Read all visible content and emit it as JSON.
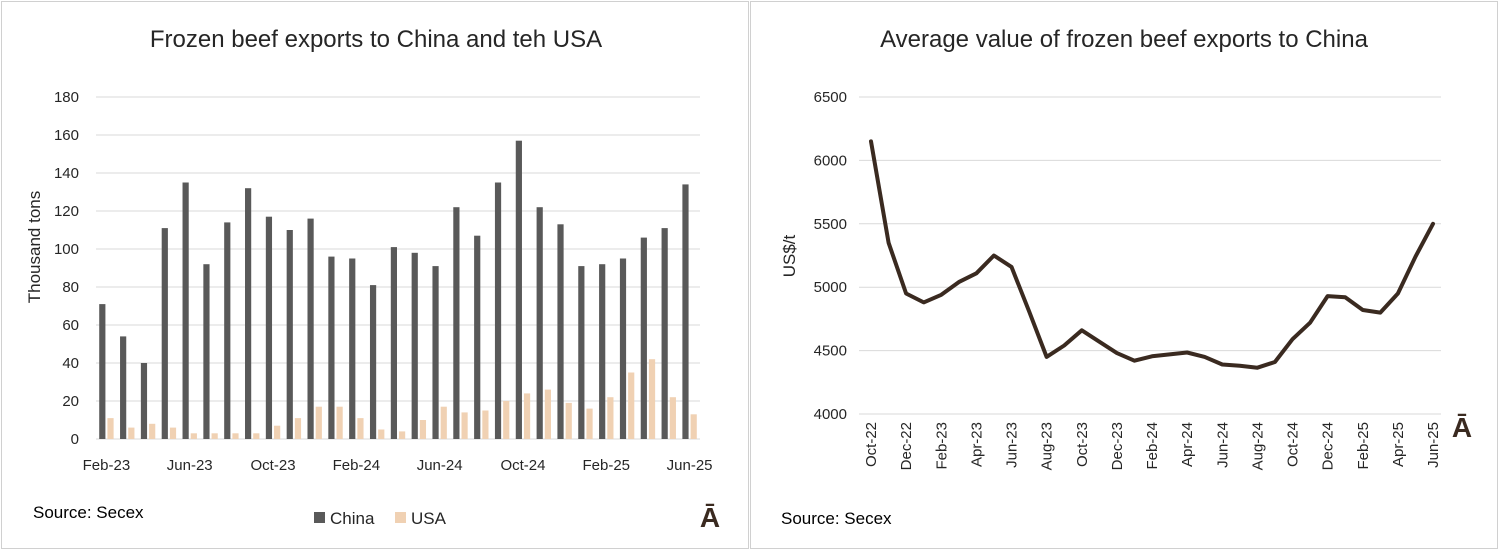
{
  "charts": {
    "chart_data": [
      {
        "type": "bar",
        "title": "Frozen beef exports to China and teh USA",
        "ylabel": "Thousand tons",
        "xlabel": "",
        "ylim": [
          0,
          180
        ],
        "yticks": [
          "0",
          "20",
          "40",
          "60",
          "80",
          "100",
          "120",
          "140",
          "160",
          "180"
        ],
        "categories": [
          "Feb-23",
          "Mar-23",
          "Apr-23",
          "May-23",
          "Jun-23",
          "Jul-23",
          "Aug-23",
          "Sep-23",
          "Oct-23",
          "Nov-23",
          "Dec-23",
          "Jan-24",
          "Feb-24",
          "Mar-24",
          "Apr-24",
          "May-24",
          "Jun-24",
          "Jul-24",
          "Aug-24",
          "Sep-24",
          "Oct-24",
          "Nov-24",
          "Dec-24",
          "Jan-25",
          "Feb-25",
          "Mar-25",
          "Apr-25",
          "May-25",
          "Jun-25"
        ],
        "xtick_labels": [
          "Feb-23",
          "Jun-23",
          "Oct-23",
          "Feb-24",
          "Jun-24",
          "Oct-24",
          "Feb-25",
          "Jun-25"
        ],
        "series": [
          {
            "name": "China",
            "color": "#595959",
            "values": [
              71,
              54,
              40,
              111,
              135,
              92,
              114,
              132,
              117,
              110,
              116,
              96,
              95,
              81,
              101,
              98,
              91,
              122,
              107,
              135,
              157,
              122,
              113,
              91,
              92,
              95,
              106,
              111,
              134
            ]
          },
          {
            "name": "USA",
            "color": "#f0d1b3",
            "values": [
              11,
              6,
              8,
              6,
              3,
              3,
              3,
              3,
              7,
              11,
              17,
              17,
              11,
              5,
              4,
              10,
              17,
              14,
              15,
              20,
              24,
              26,
              19,
              16,
              22,
              35,
              42,
              22,
              13
            ]
          }
        ],
        "legend": "bottom",
        "grid": true,
        "source": "Source: Secex",
        "logo": "Ā"
      },
      {
        "type": "line",
        "title": "Average value of frozen beef exports to China",
        "ylabel": "US$/t",
        "xlabel": "",
        "ylim": [
          4000,
          6500
        ],
        "yticks": [
          "4000",
          "4500",
          "5000",
          "5500",
          "6000",
          "6500"
        ],
        "x": [
          "Oct-22",
          "Nov-22",
          "Dec-22",
          "Jan-23",
          "Feb-23",
          "Mar-23",
          "Apr-23",
          "May-23",
          "Jun-23",
          "Jul-23",
          "Aug-23",
          "Sep-23",
          "Oct-23",
          "Nov-23",
          "Dec-23",
          "Jan-24",
          "Feb-24",
          "Mar-24",
          "Apr-24",
          "May-24",
          "Jun-24",
          "Jul-24",
          "Aug-24",
          "Sep-24",
          "Oct-24",
          "Nov-24",
          "Dec-24",
          "Jan-25",
          "Feb-25",
          "Mar-25",
          "Apr-25",
          "May-25",
          "Jun-25"
        ],
        "xtick_labels": [
          "Oct-22",
          "Dec-22",
          "Feb-23",
          "Apr-23",
          "Jun-23",
          "Aug-23",
          "Oct-23",
          "Dec-23",
          "Feb-24",
          "Apr-24",
          "Jun-24",
          "Aug-24",
          "Oct-24",
          "Dec-24",
          "Feb-25",
          "Apr-25",
          "Jun-25"
        ],
        "series": [
          {
            "name": "China",
            "color": "#3a2a20",
            "values": [
              6150,
              5350,
              4950,
              4880,
              4940,
              5040,
              5110,
              5250,
              5160,
              4810,
              4450,
              4540,
              4660,
              4570,
              4480,
              4420,
              4455,
              4470,
              4485,
              4450,
              4390,
              4380,
              4365,
              4410,
              4590,
              4720,
              4930,
              4920,
              4820,
              4800,
              4950,
              5240,
              5500
            ]
          }
        ],
        "grid": true,
        "source": "Source: Secex",
        "logo": "Ā"
      }
    ]
  }
}
